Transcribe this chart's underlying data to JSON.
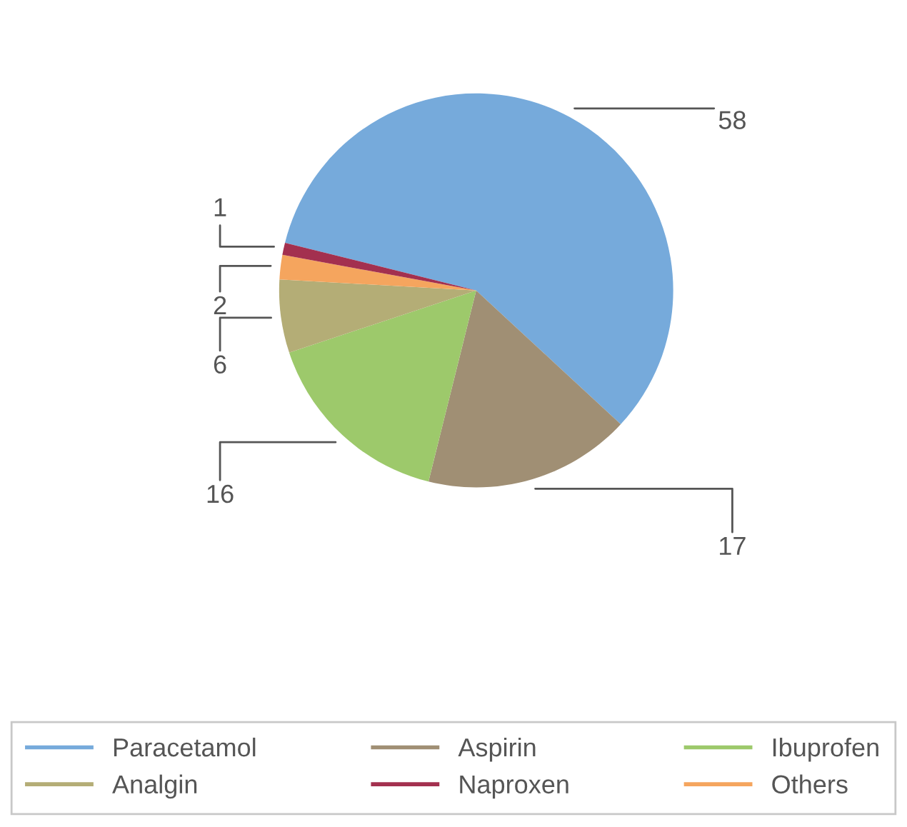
{
  "chart_data": {
    "type": "pie",
    "categories": [
      "Paracetamol",
      "Aspirin",
      "Ibuprofen",
      "Analgin",
      "Others",
      "Naproxen"
    ],
    "values": [
      58,
      17,
      16,
      6,
      2,
      1
    ],
    "colors": [
      "#76aadb",
      "#a08f74",
      "#9dc96b",
      "#b4ad76",
      "#f5a55e",
      "#a3304f"
    ],
    "data_labels": true,
    "legend": "bottom"
  }
}
